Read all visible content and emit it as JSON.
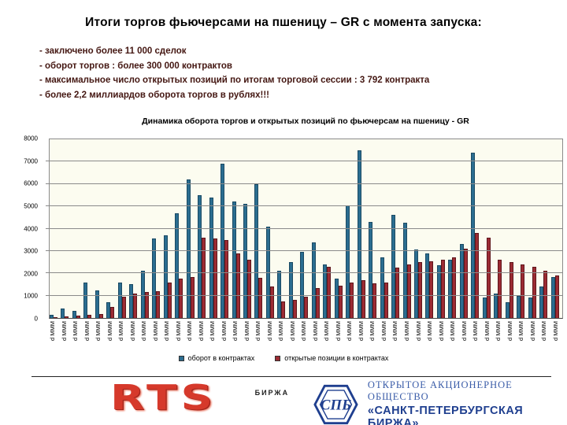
{
  "slide": {
    "title": "Итоги торгов фьючерсами на пшеницу – GR с момента запуска:",
    "bullets": [
      "- заключено более 11 000 сделок",
      "- оборот торгов : более 300 000 контрактов",
      "- максимальное число открытых позиций по итогам торговой сессии : 3 792 контракта",
      "- более 2,2 миллиардов оборота торгов в рублях!!!"
    ],
    "footer": {
      "rts_logo_text": "RTS",
      "rts_caption": "БИРЖА",
      "spb_emblem_text": "СПБ",
      "spb_line1": "ОТКРЫТОЕ АКЦИОНЕРНОЕ ОБЩЕСТВО",
      "spb_line2": "«САНКТ-ПЕТЕРБУРГСКАЯ БИРЖА»"
    }
  },
  "chart_data": {
    "type": "bar",
    "title": "Динамика оборота торгов и открытых позиций по фьючерсам на пшеницу - GR",
    "xlabel": "",
    "ylabel": "",
    "ylim": [
      0,
      8000
    ],
    "y_ticks": [
      0,
      1000,
      2000,
      3000,
      4000,
      5000,
      6000,
      7000,
      8000
    ],
    "grid": true,
    "legend_position": "bottom",
    "x_tick_label": "d MMM",
    "colors": {
      "turnover": "#2B6D90",
      "open_positions": "#9C2B33",
      "plot_bg": "#FCFCF0",
      "gridline": "#8a8a8a"
    },
    "series": [
      {
        "name": "оборот в контрактах",
        "values": [
          150,
          420,
          330,
          1600,
          1250,
          700,
          1580,
          1500,
          2100,
          3550,
          3700,
          4700,
          6200,
          5500,
          5400,
          6900,
          5200,
          5100,
          6000,
          4100,
          2100,
          2500,
          2950,
          3400,
          2400,
          1750,
          5050,
          7500,
          4300,
          2700,
          4600,
          4250,
          3050,
          2900,
          2350,
          2600,
          3300,
          7400,
          900,
          1100,
          700,
          1000,
          900,
          1400,
          1850
        ]
      },
      {
        "name": "открытые позиции в контрактах",
        "values": [
          30,
          60,
          90,
          130,
          170,
          480,
          950,
          1080,
          1150,
          1200,
          1600,
          1750,
          1850,
          3600,
          3550,
          3500,
          2900,
          2600,
          1800,
          1400,
          750,
          800,
          950,
          1350,
          2300,
          1450,
          1600,
          1700,
          1550,
          1600,
          2250,
          2400,
          2500,
          2550,
          2600,
          2700,
          3100,
          3790,
          3600,
          2600,
          2500,
          2400,
          2300,
          2100,
          1900
        ]
      }
    ]
  }
}
